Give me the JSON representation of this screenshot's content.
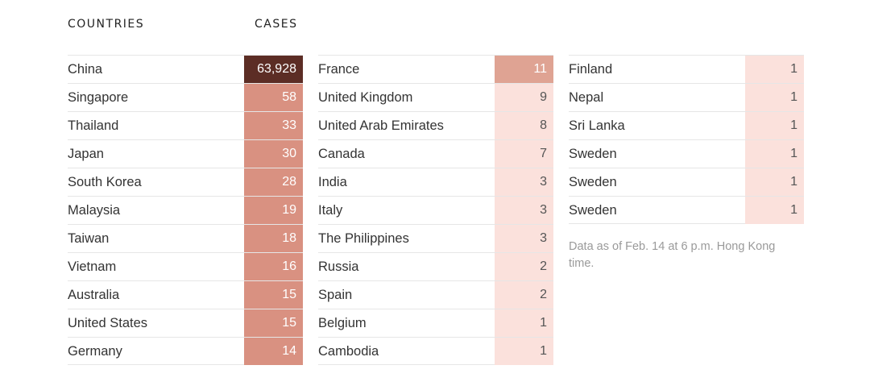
{
  "headers": {
    "countries": "COUNTRIES",
    "cases": "CASES"
  },
  "chart_data": {
    "type": "table",
    "columns": [
      "COUNTRIES",
      "CASES"
    ],
    "rows": [
      [
        "China",
        "63,928"
      ],
      [
        "Singapore",
        "58"
      ],
      [
        "Thailand",
        "33"
      ],
      [
        "Japan",
        "30"
      ],
      [
        "South Korea",
        "28"
      ],
      [
        "Malaysia",
        "19"
      ],
      [
        "Taiwan",
        "18"
      ],
      [
        "Vietnam",
        "16"
      ],
      [
        "Australia",
        "15"
      ],
      [
        "United States",
        "15"
      ],
      [
        "Germany",
        "14"
      ],
      [
        "France",
        "11"
      ],
      [
        "United Kingdom",
        "9"
      ],
      [
        "United Arab Emirates",
        "8"
      ],
      [
        "Canada",
        "7"
      ],
      [
        "India",
        "3"
      ],
      [
        "Italy",
        "3"
      ],
      [
        "The Philippines",
        "3"
      ],
      [
        "Russia",
        "2"
      ],
      [
        "Spain",
        "2"
      ],
      [
        "Belgium",
        "1"
      ],
      [
        "Cambodia",
        "1"
      ],
      [
        "Finland",
        "1"
      ],
      [
        "Nepal",
        "1"
      ],
      [
        "Sri Lanka",
        "1"
      ],
      [
        "Sweden",
        "1"
      ],
      [
        "Sweden",
        "1"
      ],
      [
        "Sweden",
        "1"
      ]
    ],
    "color_scale": {
      "top": "#5c2d25",
      "high": "#d99181",
      "mid": "#dfa393",
      "low": "#fbe1dc"
    }
  },
  "note": "Data as of Feb. 14 at 6 p.m. Hong Kong time."
}
